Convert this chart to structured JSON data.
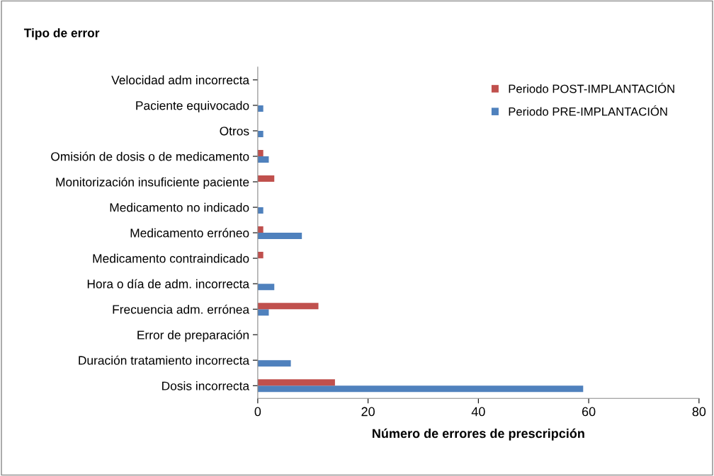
{
  "chart_data": {
    "type": "bar",
    "orientation": "horizontal",
    "xlabel": "Número de errores de prescripción",
    "ylabel": "Tipo de error",
    "categories": [
      "Velocidad adm incorrecta",
      "Paciente equivocado",
      "Otros",
      "Omisión de dosis o de medicamento",
      "Monitorización insuficiente paciente",
      "Medicamento no indicado",
      "Medicamento erróneo",
      "Medicamento contraindicado",
      "Hora o día de adm. incorrecta",
      "Frecuencia adm. errónea",
      "Error de preparación",
      "Duración tratamiento incorrecta",
      "Dosis incorrecta"
    ],
    "series": [
      {
        "name": "Periodo PRE-IMPLANTACIÓN",
        "color": "#4f81bd",
        "values": [
          0,
          1,
          1,
          2,
          0,
          1,
          8,
          0,
          3,
          2,
          0,
          6,
          59
        ]
      },
      {
        "name": "Periodo POST-IMPLANTACIÓN",
        "color": "#c0504d",
        "values": [
          0,
          0,
          0,
          1,
          3,
          0,
          1,
          1,
          0,
          11,
          0,
          0,
          14
        ]
      }
    ],
    "xlim": [
      0,
      80
    ],
    "xticks": [
      0,
      20,
      40,
      60,
      80
    ],
    "grid": false,
    "legend": "top right"
  }
}
